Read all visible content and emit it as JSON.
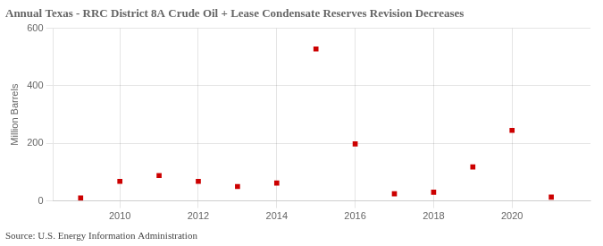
{
  "chart_data": {
    "type": "scatter",
    "title": "Annual Texas - RRC District 8A Crude Oil + Lease Condensate Reserves Revision Decreases",
    "ylabel": "Million Barrels",
    "annotations": [
      "Source: U.S. Energy Information Administration"
    ],
    "x": [
      2009,
      2010,
      2011,
      2012,
      2013,
      2014,
      2015,
      2016,
      2017,
      2018,
      2019,
      2020,
      2021
    ],
    "values": [
      10,
      68,
      88,
      68,
      50,
      62,
      528,
      198,
      25,
      30,
      118,
      245,
      13
    ],
    "color": "#cc0000",
    "marker": "square",
    "xlim": [
      2008.3,
      2022.0
    ],
    "ylim": [
      0,
      600
    ],
    "xticks": [
      2010,
      2012,
      2014,
      2016,
      2018,
      2020
    ],
    "yticks": [
      0,
      200,
      400,
      600
    ],
    "grid": true
  }
}
